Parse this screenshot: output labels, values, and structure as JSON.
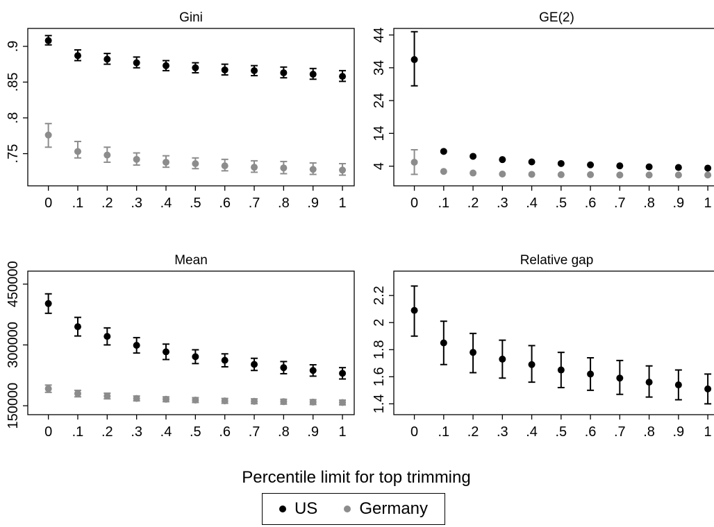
{
  "colors": {
    "us": "#000000",
    "germany": "#8c8c8c",
    "frame": "#000000",
    "background": "#ffffff"
  },
  "xlabel": "Percentile limit for top trimming",
  "legend": {
    "placement": "bottom-center",
    "items": [
      {
        "label": "US",
        "color": "#000000"
      },
      {
        "label": "Germany",
        "color": "#8c8c8c"
      }
    ]
  },
  "chart_data": [
    {
      "type": "scatter",
      "title": "Gini",
      "x": [
        0,
        0.1,
        0.2,
        0.3,
        0.4,
        0.5,
        0.6,
        0.7,
        0.8,
        0.9,
        1
      ],
      "xticks": [
        0,
        0.1,
        0.2,
        0.3,
        0.4,
        0.5,
        0.6,
        0.7,
        0.8,
        0.9,
        1
      ],
      "xtick_labels": [
        "0",
        ".1",
        ".2",
        ".3",
        ".4",
        ".5",
        ".6",
        ".7",
        ".8",
        ".9",
        "1"
      ],
      "xlim": [
        -0.07,
        1.04
      ],
      "ylim": [
        0.705,
        0.925
      ],
      "yticks": [
        0.75,
        0.8,
        0.85,
        0.9
      ],
      "ytick_labels": [
        ".75",
        ".8",
        ".85",
        ".9"
      ],
      "series": [
        {
          "name": "US",
          "color": "#000000",
          "values": [
            0.908,
            0.887,
            0.882,
            0.877,
            0.873,
            0.87,
            0.867,
            0.866,
            0.863,
            0.861,
            0.858
          ],
          "lower": [
            0.902,
            0.88,
            0.875,
            0.87,
            0.866,
            0.863,
            0.86,
            0.859,
            0.856,
            0.854,
            0.851
          ],
          "upper": [
            0.915,
            0.895,
            0.89,
            0.885,
            0.88,
            0.877,
            0.875,
            0.873,
            0.871,
            0.869,
            0.866
          ]
        },
        {
          "name": "Germany",
          "color": "#8c8c8c",
          "values": [
            0.776,
            0.753,
            0.748,
            0.742,
            0.738,
            0.736,
            0.733,
            0.731,
            0.73,
            0.728,
            0.727
          ],
          "lower": [
            0.759,
            0.744,
            0.738,
            0.734,
            0.731,
            0.729,
            0.726,
            0.724,
            0.722,
            0.721,
            0.72
          ],
          "upper": [
            0.792,
            0.767,
            0.759,
            0.751,
            0.747,
            0.744,
            0.742,
            0.74,
            0.739,
            0.737,
            0.736
          ]
        }
      ]
    },
    {
      "type": "scatter",
      "title": "GE(2)",
      "x": [
        0,
        0.1,
        0.2,
        0.3,
        0.4,
        0.5,
        0.6,
        0.7,
        0.8,
        0.9,
        1
      ],
      "xticks": [
        0,
        0.1,
        0.2,
        0.3,
        0.4,
        0.5,
        0.6,
        0.7,
        0.8,
        0.9,
        1
      ],
      "xtick_labels": [
        "0",
        ".1",
        ".2",
        ".3",
        ".4",
        ".5",
        ".6",
        ".7",
        ".8",
        ".9",
        "1"
      ],
      "xlim": [
        -0.07,
        1.04
      ],
      "ylim": [
        -2,
        46
      ],
      "yticks": [
        4,
        14,
        24,
        34,
        44
      ],
      "ytick_labels": [
        "4",
        "14",
        "24",
        "34",
        "44"
      ],
      "series": [
        {
          "name": "US",
          "color": "#000000",
          "values": [
            36.5,
            8.5,
            7.0,
            6.0,
            5.3,
            4.8,
            4.4,
            4.1,
            3.8,
            3.6,
            3.4
          ],
          "lower": [
            28.5,
            8.5,
            7.0,
            6.0,
            5.3,
            4.8,
            4.4,
            4.1,
            3.8,
            3.6,
            3.4
          ],
          "upper": [
            45.0,
            8.5,
            7.0,
            6.0,
            5.3,
            4.8,
            4.4,
            4.1,
            3.8,
            3.6,
            3.4
          ]
        },
        {
          "name": "Germany",
          "color": "#8c8c8c",
          "values": [
            5.2,
            2.4,
            1.9,
            1.6,
            1.5,
            1.4,
            1.4,
            1.3,
            1.3,
            1.3,
            1.3
          ],
          "lower": [
            1.5,
            2.4,
            1.9,
            1.6,
            1.5,
            1.4,
            1.4,
            1.3,
            1.3,
            1.3,
            1.3
          ],
          "upper": [
            9.0,
            2.4,
            1.9,
            1.6,
            1.5,
            1.4,
            1.4,
            1.3,
            1.3,
            1.3,
            1.3
          ]
        }
      ]
    },
    {
      "type": "scatter",
      "title": "Mean",
      "x": [
        0,
        0.1,
        0.2,
        0.3,
        0.4,
        0.5,
        0.6,
        0.7,
        0.8,
        0.9,
        1
      ],
      "xticks": [
        0,
        0.1,
        0.2,
        0.3,
        0.4,
        0.5,
        0.6,
        0.7,
        0.8,
        0.9,
        1
      ],
      "xtick_labels": [
        "0",
        ".1",
        ".2",
        ".3",
        ".4",
        ".5",
        ".6",
        ".7",
        ".8",
        ".9",
        "1"
      ],
      "xlim": [
        -0.07,
        1.04
      ],
      "ylim": [
        128000,
        482000
      ],
      "yticks": [
        150000,
        300000,
        450000
      ],
      "ytick_labels": [
        "150000",
        "300000",
        "450000"
      ],
      "series": [
        {
          "name": "US",
          "color": "#000000",
          "values": [
            402000,
            345000,
            321000,
            299000,
            283000,
            271000,
            262000,
            252000,
            244000,
            237000,
            230000
          ],
          "lower": [
            378000,
            322000,
            300000,
            280000,
            264000,
            254000,
            246000,
            237000,
            229000,
            223000,
            216000
          ],
          "upper": [
            426000,
            368000,
            342000,
            318000,
            302000,
            288000,
            278000,
            267000,
            259000,
            251000,
            244000
          ]
        },
        {
          "name": "Germany",
          "color": "#8c8c8c",
          "values": [
            192000,
            180000,
            174000,
            168000,
            166000,
            164000,
            162000,
            161000,
            160000,
            159000,
            158000
          ],
          "lower": [
            183000,
            172000,
            167000,
            162000,
            160000,
            158000,
            156000,
            155000,
            154000,
            153000,
            152000
          ],
          "upper": [
            201000,
            188000,
            181000,
            174000,
            172000,
            170000,
            168000,
            167000,
            166000,
            165000,
            164000
          ]
        }
      ]
    },
    {
      "type": "scatter",
      "title": "Relative gap",
      "x": [
        0,
        0.1,
        0.2,
        0.3,
        0.4,
        0.5,
        0.6,
        0.7,
        0.8,
        0.9,
        1
      ],
      "xticks": [
        0,
        0.1,
        0.2,
        0.3,
        0.4,
        0.5,
        0.6,
        0.7,
        0.8,
        0.9,
        1
      ],
      "xtick_labels": [
        "0",
        ".1",
        ".2",
        ".3",
        ".4",
        ".5",
        ".6",
        ".7",
        ".8",
        ".9",
        "1"
      ],
      "xlim": [
        -0.07,
        1.04
      ],
      "ylim": [
        1.32,
        2.38
      ],
      "yticks": [
        1.4,
        1.6,
        1.8,
        2.0,
        2.2
      ],
      "ytick_labels": [
        "1.4",
        "1.6",
        "1.8",
        "2",
        "2.2"
      ],
      "series": [
        {
          "name": "US",
          "color": "#000000",
          "values": [
            2.09,
            1.85,
            1.78,
            1.73,
            1.69,
            1.65,
            1.62,
            1.59,
            1.56,
            1.54,
            1.51
          ],
          "lower": [
            1.9,
            1.69,
            1.63,
            1.59,
            1.56,
            1.52,
            1.5,
            1.47,
            1.45,
            1.43,
            1.4
          ],
          "upper": [
            2.27,
            2.01,
            1.92,
            1.87,
            1.83,
            1.78,
            1.74,
            1.72,
            1.68,
            1.65,
            1.62
          ]
        }
      ]
    }
  ]
}
